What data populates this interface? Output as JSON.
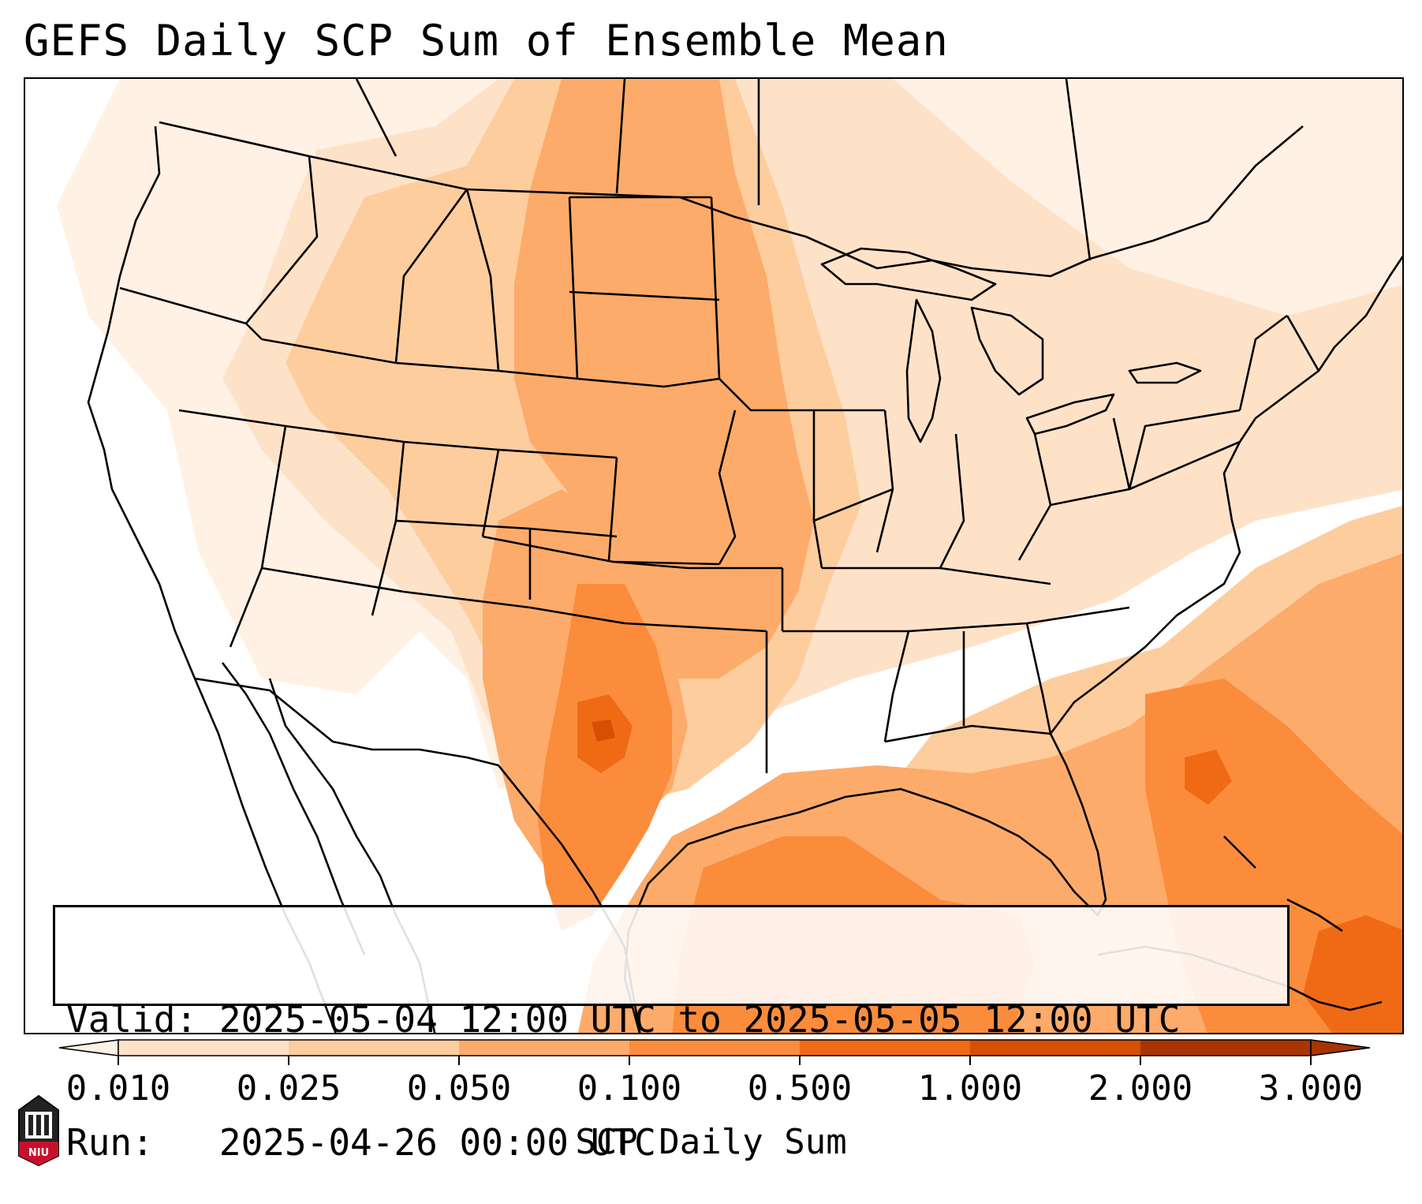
{
  "title": "GEFS Daily SCP Sum of Ensemble Mean",
  "info": {
    "valid_label": "Valid:",
    "valid_value": "2025-05-04 12:00 UTC to 2025-05-05 12:00 UTC",
    "run_label": "Run:",
    "run_value": "2025-04-26 00:00 UTC"
  },
  "colorbar": {
    "title": "SCP Daily Sum",
    "tick_labels": [
      "0.010",
      "0.025",
      "0.050",
      "0.100",
      "0.500",
      "1.000",
      "2.000",
      "3.000"
    ],
    "colors": [
      "#fff1e4",
      "#fee2c8",
      "#fdcd9e",
      "#fdab6a",
      "#fb8c3c",
      "#f06a15",
      "#d64f03",
      "#a83503"
    ],
    "extend": "both"
  },
  "map": {
    "region": "Continental United States",
    "shaded_regions": [
      {
        "level": 0,
        "color": "#fff1e4"
      },
      {
        "level": 1,
        "color": "#fee2c8"
      },
      {
        "level": 2,
        "color": "#fdcd9e"
      },
      {
        "level": 3,
        "color": "#fdab6a"
      },
      {
        "level": 4,
        "color": "#fb8c3c"
      },
      {
        "level": 5,
        "color": "#f06a15"
      },
      {
        "level": 6,
        "color": "#d64f03"
      }
    ]
  },
  "logo": {
    "text": "NIU"
  }
}
